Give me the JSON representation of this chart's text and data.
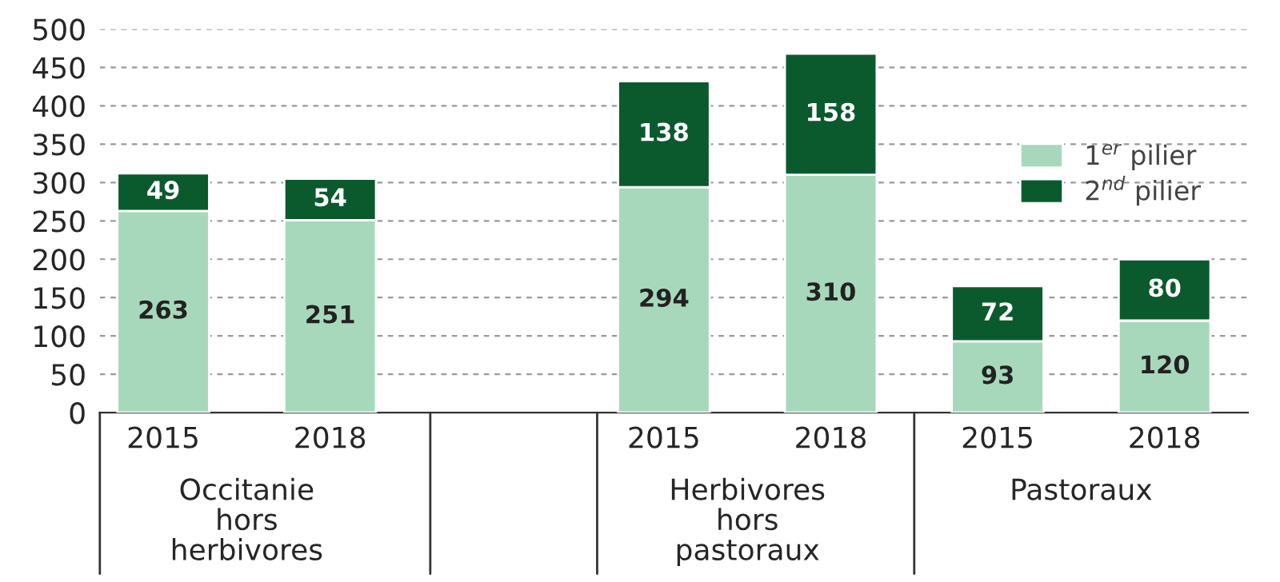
{
  "chart_data": {
    "type": "bar",
    "stacked": true,
    "categories": [
      "2015",
      "2018",
      null,
      "2015",
      "2018",
      "2015",
      "2018"
    ],
    "series": [
      {
        "name": "1$^{er}$ pilier",
        "color": "#a8d8bc",
        "values": [
          263,
          251,
          null,
          294,
          310,
          93,
          120
        ]
      },
      {
        "name": "2$^{nd}$ pilier",
        "color": "#0b5a2e",
        "values": [
          49,
          54,
          null,
          138,
          158,
          72,
          80
        ]
      }
    ],
    "data_labels": true,
    "ylim": [
      0,
      500
    ],
    "yticks": [
      0,
      50,
      100,
      150,
      200,
      250,
      300,
      350,
      400,
      450,
      500
    ],
    "grid": "y",
    "legend": "center right",
    "annotations": [
      "Occitanie\nhors\nherbivores",
      "Herbivores\nhors\npastoraux",
      "Pastoraux"
    ]
  }
}
